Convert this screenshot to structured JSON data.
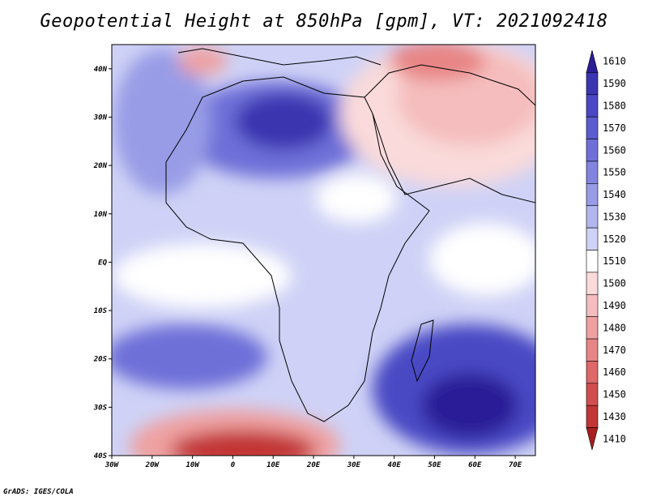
{
  "title": "Geopotential Height at 850hPa [gpm], VT: 2021092418",
  "footer": "GrADS: IGES/COLA",
  "lon_ticks": [
    "30W",
    "20W",
    "10W",
    "0",
    "10E",
    "20E",
    "30E",
    "40E",
    "50E",
    "60E",
    "70E"
  ],
  "lat_ticks": [
    "40N",
    "30N",
    "20N",
    "10N",
    "EQ",
    "10S",
    "20S",
    "30S",
    "40S"
  ],
  "colorbar": {
    "levels": [
      "1610",
      "1590",
      "1580",
      "1570",
      "1560",
      "1550",
      "1540",
      "1530",
      "1520",
      "1510",
      "1500",
      "1490",
      "1480",
      "1470",
      "1460",
      "1450",
      "1430",
      "1410"
    ],
    "colors": [
      "#2b1e96",
      "#3a35b0",
      "#4a48c4",
      "#5b5ccf",
      "#6e70d8",
      "#8285df",
      "#989ce6",
      "#b2b6ee",
      "#cfd2f6",
      "#ffffff",
      "#fadada",
      "#f5bdbd",
      "#efa1a1",
      "#e88585",
      "#df6868",
      "#d24e4e",
      "#c23636",
      "#a81e1e"
    ]
  },
  "map_extent": {
    "lon_min": -30,
    "lon_max": 75,
    "lat_min": -40,
    "lat_max": 45
  }
}
